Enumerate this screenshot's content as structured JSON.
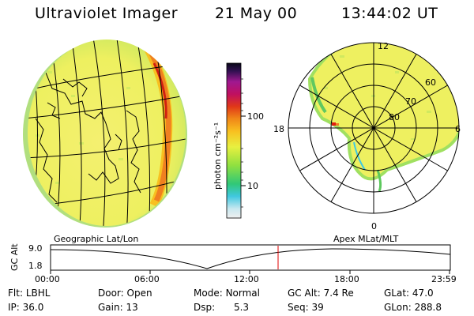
{
  "header": {
    "instrument": "Ultraviolet Imager",
    "date": "21 May 00",
    "time": "13:44:02 UT"
  },
  "colorbar": {
    "unit_label": "photon cm⁻²s⁻¹",
    "ticks": [
      "100",
      "10"
    ]
  },
  "polar_plot": {
    "mlt_labels": [
      "12",
      "18",
      "6",
      "0"
    ],
    "lat_labels": [
      "60",
      "70",
      "80"
    ]
  },
  "timeline": {
    "left_caption": "Geographic Lat/Lon",
    "right_caption": "Apex MLat/MLT",
    "y_axis_title": "GC Alt",
    "y_ticks": [
      "9.0",
      "1.8"
    ],
    "x_ticks": [
      "00:00",
      "06:00",
      "12:00",
      "18:00",
      "23:59"
    ]
  },
  "status": {
    "flt_label": "Flt:",
    "flt_value": "LBHL",
    "ip_label": "IP:",
    "ip_value": "36.0",
    "door_label": "Door:",
    "door_value": "Open",
    "gain_label": "Gain:",
    "gain_value": "13",
    "mode_label": "Mode:",
    "mode_value": "Normal",
    "dsp_label": "Dsp:",
    "dsp_value": "5.3",
    "gcalt_label": "GC Alt:",
    "gcalt_value": "7.4 Re",
    "seq_label": "Seq:",
    "seq_value": "39",
    "glat_label": "GLat:",
    "glat_value": "47.0",
    "glon_label": "GLon:",
    "glon_value": "288.8"
  },
  "colors": {
    "field": "#f2f060",
    "field_green": "#b8e860",
    "edge_green": "#5cc85c",
    "arc_orange": "#f08020",
    "arc_red": "#d02010",
    "marker_red": "#e00000"
  }
}
